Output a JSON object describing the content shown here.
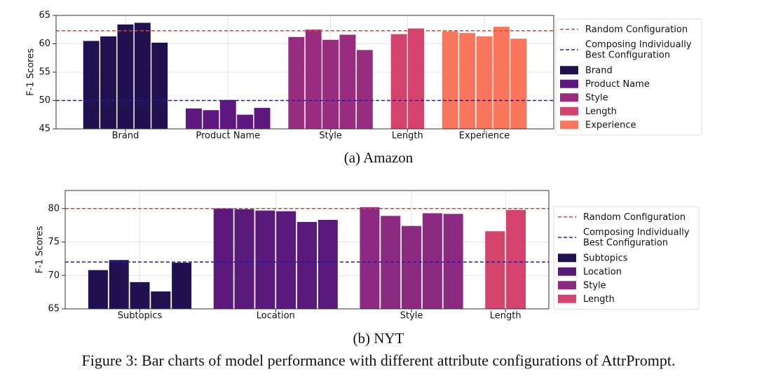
{
  "chart_data": [
    {
      "type": "grouped-bar",
      "caption": "(a) Amazon",
      "ylabel": "F-1 Scores",
      "ylim": [
        45,
        65
      ],
      "yticks": [
        45,
        50,
        55,
        60,
        65
      ],
      "grid": true,
      "legend": "outside-right",
      "groups": [
        {
          "name": "Brand",
          "color": "#221150",
          "values": [
            60.5,
            61.3,
            63.4,
            63.7,
            60.2
          ]
        },
        {
          "name": "Product Name",
          "color": "#5f187f",
          "values": [
            48.6,
            48.3,
            50.1,
            47.5,
            48.7
          ]
        },
        {
          "name": "Style",
          "color": "#982d80",
          "values": [
            61.2,
            62.5,
            60.7,
            61.6,
            58.9
          ]
        },
        {
          "name": "Length",
          "color": "#d3436e",
          "values": [
            61.7,
            62.7
          ]
        },
        {
          "name": "Experience",
          "color": "#f8765c",
          "values": [
            62.2,
            61.9,
            61.3,
            63.0,
            60.9
          ]
        }
      ],
      "reference_lines": [
        {
          "name": "Random Configuration",
          "value": 62.3,
          "color": "#d9472b"
        },
        {
          "name": "Composing Individually\nBest Configuration",
          "value": 50,
          "color": "#1c22a8"
        }
      ]
    },
    {
      "type": "grouped-bar",
      "caption": "(b) NYT",
      "ylabel": "F-1 Scores",
      "ylim": [
        65,
        82.7
      ],
      "yticks": [
        65,
        70,
        75,
        80
      ],
      "grid": true,
      "legend": "outside-right",
      "groups": [
        {
          "name": "Subtopics",
          "color": "#221150",
          "values": [
            70.8,
            72.3,
            69.0,
            67.6,
            71.9
          ]
        },
        {
          "name": "Location",
          "color": "#5a1a7c",
          "values": [
            80.0,
            79.9,
            79.7,
            79.6,
            78.0,
            78.3
          ]
        },
        {
          "name": "Style",
          "color": "#8c2981",
          "values": [
            80.2,
            78.9,
            77.4,
            79.3,
            79.2
          ]
        },
        {
          "name": "Length",
          "color": "#d3436e",
          "values": [
            76.6,
            79.8
          ]
        }
      ],
      "reference_lines": [
        {
          "name": "Random Configuration",
          "value": 80.0,
          "color": "#d9472b"
        },
        {
          "name": "Composing Individually\nBest Configuration",
          "value": 72.0,
          "color": "#1c22a8"
        }
      ]
    }
  ],
  "figure_caption": "Figure 3: Bar charts of model performance with different attribute configurations of AttrPrompt."
}
